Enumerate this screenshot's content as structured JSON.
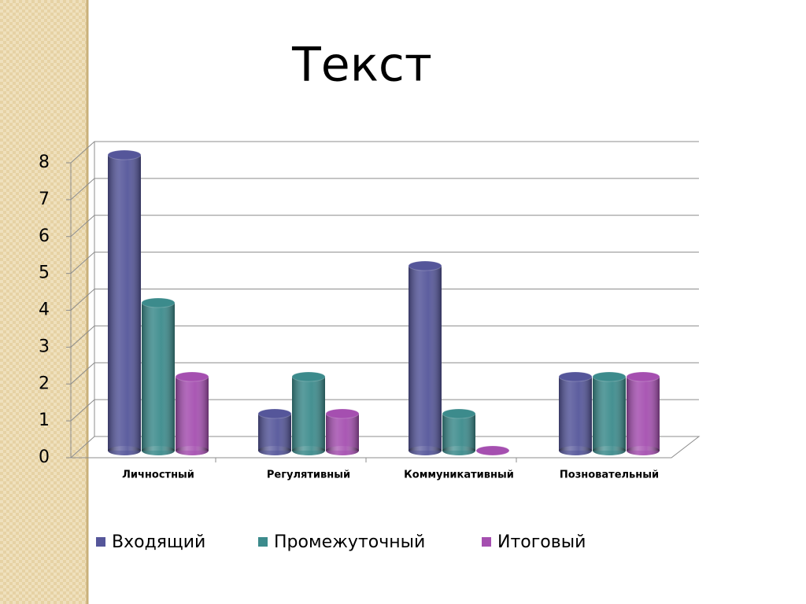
{
  "chart_data": {
    "type": "bar",
    "title": "Текст",
    "categories": [
      "Личностный",
      "Регулятивный",
      "Коммуникативный",
      "Позновательный"
    ],
    "series": [
      {
        "name": "Входящий",
        "color": "#55569a",
        "values": [
          8,
          1,
          5,
          2
        ]
      },
      {
        "name": "Промежуточный",
        "color": "#3c8b8c",
        "values": [
          4,
          2,
          1,
          2
        ]
      },
      {
        "name": "Итоговый",
        "color": "#a54fb0",
        "values": [
          2,
          1,
          0,
          2
        ]
      }
    ],
    "ylim": [
      0,
      8
    ],
    "yticks": [
      0,
      1,
      2,
      3,
      4,
      5,
      6,
      7,
      8
    ],
    "grid": true
  }
}
